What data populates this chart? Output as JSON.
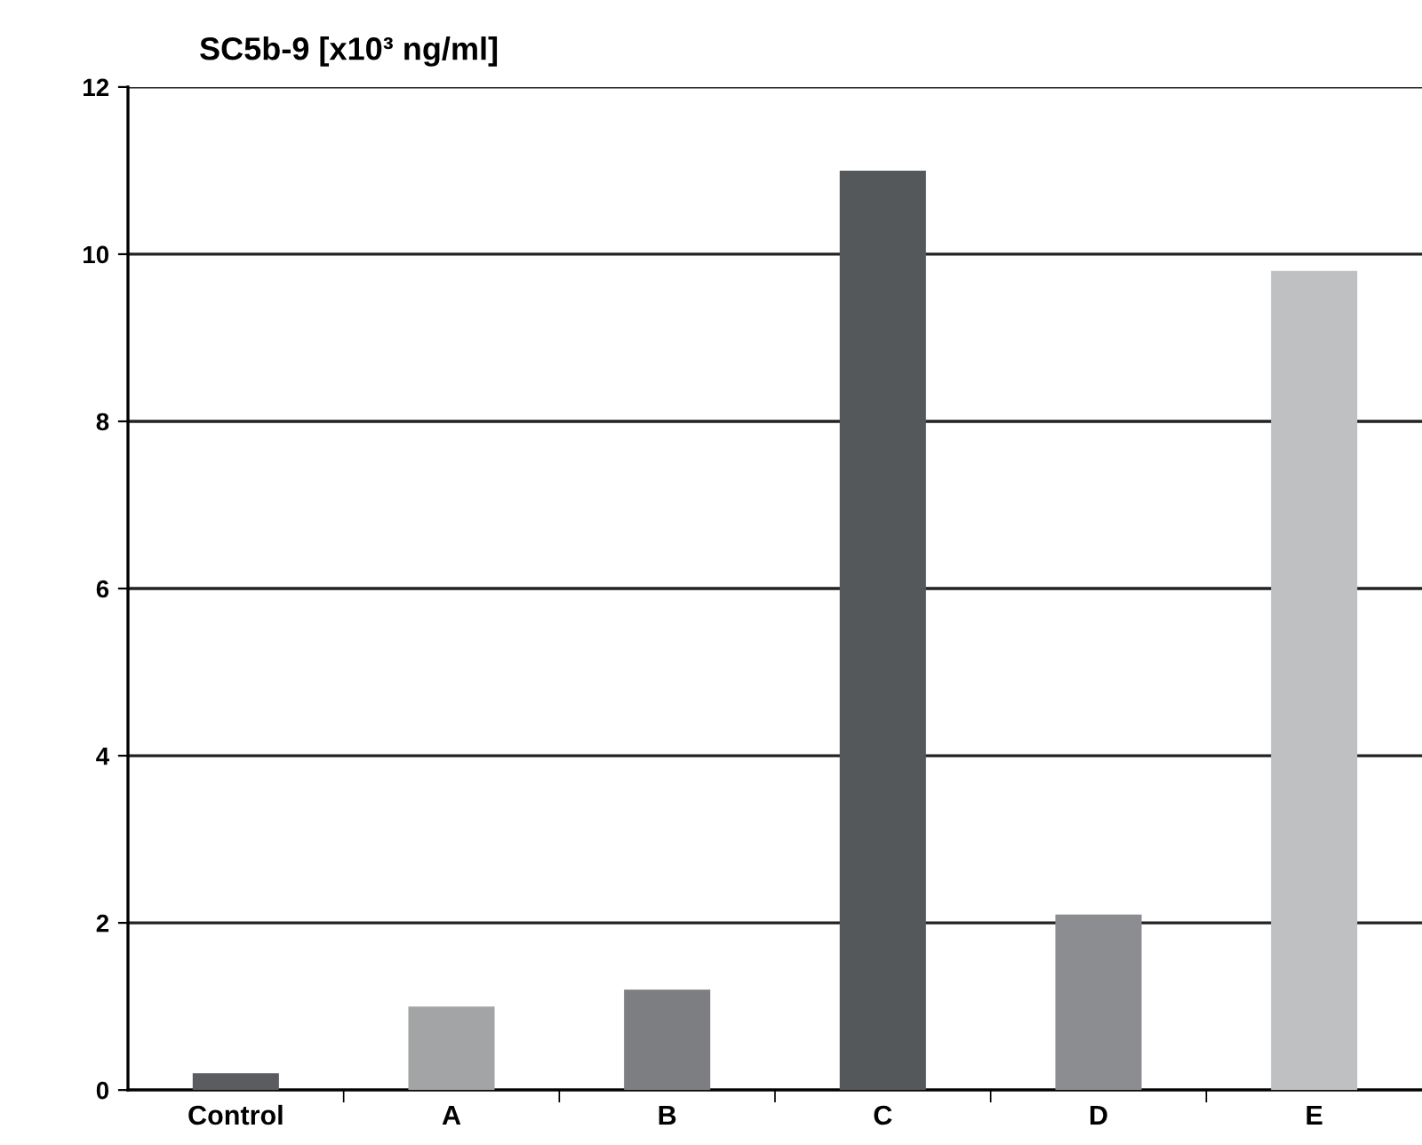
{
  "chart_data": {
    "type": "bar",
    "ylabel": "SC5b-9 [x10³ ng/ml]",
    "categories": [
      "Control",
      "A",
      "B",
      "C",
      "D",
      "E"
    ],
    "values": [
      0.2,
      1.0,
      1.2,
      11.0,
      2.1,
      9.8
    ],
    "colors": [
      "#5a5c60",
      "#a3a4a6",
      "#7d7e81",
      "#55585b",
      "#8c8d90",
      "#bfc0c2"
    ],
    "ylim": [
      0,
      12
    ],
    "yticks": [
      0,
      2,
      4,
      6,
      8,
      10,
      12
    ],
    "grid": "y"
  }
}
